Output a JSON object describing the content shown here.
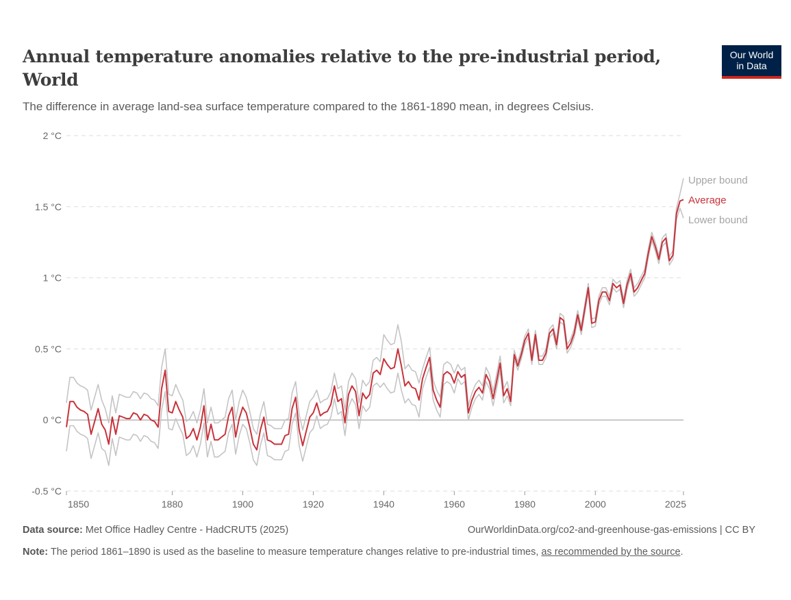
{
  "header": {
    "title": "Annual temperature anomalies relative to the pre-industrial period, World",
    "subtitle": "The difference in average land-sea surface temperature compared to the 1861-1890 mean, in degrees Celsius.",
    "logo_text": "Our World in Data"
  },
  "footer": {
    "source_label": "Data source:",
    "source_text": "Met Office Hadley Centre - HadCRUT5 (2025)",
    "url_license": "OurWorldinData.org/co2-and-greenhouse-gas-emissions | CC BY",
    "note_label": "Note:",
    "note_text": "The period 1861–1890 is used as the baseline to measure temperature changes relative to pre-industrial times, ",
    "note_link": "as recommended by the source",
    "note_end": "."
  },
  "colors": {
    "average": "#c8323a",
    "bounds": "#c4c4c4",
    "logo_bg": "#002147",
    "logo_accent": "#ce261e"
  },
  "chart_data": {
    "type": "line",
    "title": "Annual temperature anomalies relative to the pre-industrial period, World",
    "x_start": 1850,
    "x_end": 2025,
    "xlim": [
      1850,
      2025
    ],
    "ylim": [
      -0.5,
      2
    ],
    "x_ticks": [
      "1850",
      "1880",
      "1900",
      "1920",
      "1940",
      "1960",
      "1980",
      "2000",
      "2025"
    ],
    "x_tick_values": [
      1850,
      1880,
      1900,
      1920,
      1940,
      1960,
      1980,
      2000,
      2025
    ],
    "y_ticks": [
      "-0.5 °C",
      "0 °C",
      "0.5 °C",
      "1 °C",
      "1.5 °C",
      "2 °C"
    ],
    "y_tick_values": [
      -0.5,
      0,
      0.5,
      1,
      1.5,
      2
    ],
    "grid": "horizontal dashed",
    "legend": "right (line-end labels)",
    "series": [
      {
        "name": "Upper bound",
        "color": "#c4c4c4",
        "values": [
          0.12,
          0.3,
          0.3,
          0.26,
          0.24,
          0.23,
          0.21,
          0.07,
          0.16,
          0.25,
          0.14,
          0.08,
          -0.02,
          0.17,
          0.05,
          0.18,
          0.17,
          0.16,
          0.16,
          0.2,
          0.19,
          0.15,
          0.19,
          0.18,
          0.15,
          0.14,
          0.1,
          0.37,
          0.5,
          0.18,
          0.17,
          0.25,
          0.19,
          0.14,
          -0.01,
          0.01,
          0.06,
          -0.02,
          0.07,
          0.22,
          -0.02,
          0.09,
          -0.02,
          -0.02,
          0.0,
          0.02,
          0.15,
          0.21,
          0.0,
          0.13,
          0.21,
          0.16,
          0.06,
          -0.06,
          -0.1,
          0.04,
          0.13,
          -0.03,
          -0.04,
          -0.06,
          -0.06,
          -0.06,
          0.0,
          0.01,
          0.19,
          0.27,
          0.04,
          -0.07,
          0.03,
          0.13,
          0.16,
          0.21,
          0.12,
          0.14,
          0.15,
          0.2,
          0.33,
          0.22,
          0.24,
          0.07,
          0.27,
          0.33,
          0.29,
          0.12,
          0.28,
          0.24,
          0.27,
          0.42,
          0.44,
          0.41,
          0.6,
          0.56,
          0.53,
          0.54,
          0.67,
          0.55,
          0.36,
          0.39,
          0.35,
          0.34,
          0.26,
          0.36,
          0.44,
          0.51,
          0.28,
          0.21,
          0.16,
          0.39,
          0.41,
          0.39,
          0.33,
          0.39,
          0.35,
          0.37,
          0.1,
          0.19,
          0.25,
          0.28,
          0.24,
          0.37,
          0.32,
          0.2,
          0.32,
          0.45,
          0.22,
          0.27,
          0.16,
          0.49,
          0.41,
          0.49,
          0.59,
          0.64,
          0.45,
          0.63,
          0.45,
          0.45,
          0.5,
          0.64,
          0.67,
          0.56,
          0.75,
          0.73,
          0.53,
          0.57,
          0.64,
          0.77,
          0.66,
          0.81,
          0.96,
          0.71,
          0.72,
          0.87,
          0.93,
          0.93,
          0.87,
          0.99,
          0.96,
          0.98,
          0.85,
          0.98,
          1.06,
          0.93,
          0.96,
          1.01,
          1.06,
          1.2,
          1.32,
          1.25,
          1.16,
          1.28,
          1.31,
          1.15,
          1.19,
          1.49,
          1.59,
          1.7
        ]
      },
      {
        "name": "Average",
        "color": "#c8323a",
        "values": [
          -0.05,
          0.13,
          0.13,
          0.09,
          0.07,
          0.06,
          0.04,
          -0.1,
          -0.01,
          0.08,
          -0.03,
          -0.07,
          -0.17,
          0.02,
          -0.1,
          0.03,
          0.02,
          0.01,
          0.01,
          0.05,
          0.04,
          0.0,
          0.04,
          0.03,
          0.0,
          -0.01,
          -0.05,
          0.22,
          0.35,
          0.06,
          0.05,
          0.13,
          0.07,
          0.02,
          -0.13,
          -0.11,
          -0.06,
          -0.14,
          -0.05,
          0.1,
          -0.14,
          -0.03,
          -0.14,
          -0.14,
          -0.12,
          -0.1,
          0.03,
          0.09,
          -0.12,
          0.01,
          0.09,
          0.05,
          -0.05,
          -0.17,
          -0.21,
          -0.07,
          0.02,
          -0.14,
          -0.15,
          -0.17,
          -0.17,
          -0.17,
          -0.11,
          -0.1,
          0.08,
          0.16,
          -0.07,
          -0.18,
          -0.08,
          0.02,
          0.05,
          0.12,
          0.03,
          0.05,
          0.06,
          0.11,
          0.24,
          0.13,
          0.15,
          -0.02,
          0.18,
          0.24,
          0.2,
          0.03,
          0.19,
          0.15,
          0.18,
          0.33,
          0.35,
          0.32,
          0.43,
          0.39,
          0.36,
          0.37,
          0.5,
          0.38,
          0.24,
          0.27,
          0.23,
          0.22,
          0.14,
          0.29,
          0.37,
          0.44,
          0.21,
          0.14,
          0.09,
          0.32,
          0.34,
          0.32,
          0.26,
          0.34,
          0.3,
          0.32,
          0.05,
          0.14,
          0.2,
          0.23,
          0.19,
          0.32,
          0.27,
          0.15,
          0.27,
          0.4,
          0.17,
          0.22,
          0.13,
          0.46,
          0.38,
          0.46,
          0.56,
          0.61,
          0.42,
          0.6,
          0.42,
          0.42,
          0.47,
          0.61,
          0.64,
          0.53,
          0.72,
          0.7,
          0.5,
          0.54,
          0.61,
          0.74,
          0.63,
          0.78,
          0.93,
          0.68,
          0.69,
          0.84,
          0.9,
          0.9,
          0.84,
          0.96,
          0.93,
          0.95,
          0.82,
          0.95,
          1.03,
          0.9,
          0.93,
          0.98,
          1.03,
          1.17,
          1.29,
          1.22,
          1.13,
          1.25,
          1.28,
          1.12,
          1.16,
          1.45,
          1.54,
          1.55
        ]
      },
      {
        "name": "Lower bound",
        "color": "#c4c4c4",
        "values": [
          -0.22,
          -0.04,
          -0.04,
          -0.08,
          -0.1,
          -0.11,
          -0.13,
          -0.27,
          -0.18,
          -0.09,
          -0.2,
          -0.22,
          -0.32,
          -0.13,
          -0.25,
          -0.12,
          -0.13,
          -0.14,
          -0.14,
          -0.1,
          -0.11,
          -0.15,
          -0.11,
          -0.12,
          -0.15,
          -0.16,
          -0.2,
          0.07,
          0.2,
          -0.06,
          -0.07,
          0.01,
          -0.05,
          -0.1,
          -0.25,
          -0.23,
          -0.18,
          -0.26,
          -0.17,
          -0.02,
          -0.26,
          -0.15,
          -0.26,
          -0.26,
          -0.24,
          -0.22,
          -0.09,
          -0.03,
          -0.24,
          -0.11,
          -0.03,
          -0.06,
          -0.16,
          -0.28,
          -0.32,
          -0.18,
          -0.09,
          -0.25,
          -0.26,
          -0.28,
          -0.28,
          -0.28,
          -0.22,
          -0.21,
          -0.03,
          0.05,
          -0.18,
          -0.29,
          -0.19,
          -0.09,
          -0.06,
          0.03,
          -0.06,
          -0.04,
          -0.03,
          0.02,
          0.15,
          0.04,
          0.06,
          -0.11,
          0.09,
          0.15,
          0.11,
          -0.06,
          0.1,
          0.06,
          0.09,
          0.24,
          0.26,
          0.23,
          0.26,
          0.22,
          0.19,
          0.2,
          0.33,
          0.21,
          0.12,
          0.15,
          0.11,
          0.1,
          0.02,
          0.22,
          0.3,
          0.37,
          0.14,
          0.07,
          0.02,
          0.25,
          0.27,
          0.25,
          0.19,
          0.29,
          0.25,
          0.27,
          0.0,
          0.09,
          0.15,
          0.18,
          0.14,
          0.27,
          0.22,
          0.1,
          0.22,
          0.35,
          0.12,
          0.17,
          0.1,
          0.43,
          0.35,
          0.43,
          0.53,
          0.58,
          0.39,
          0.57,
          0.39,
          0.39,
          0.44,
          0.58,
          0.61,
          0.5,
          0.69,
          0.67,
          0.47,
          0.51,
          0.58,
          0.71,
          0.6,
          0.75,
          0.9,
          0.65,
          0.66,
          0.81,
          0.87,
          0.87,
          0.81,
          0.93,
          0.9,
          0.92,
          0.79,
          0.92,
          1.0,
          0.87,
          0.9,
          0.95,
          1.0,
          1.14,
          1.26,
          1.19,
          1.1,
          1.22,
          1.25,
          1.09,
          1.13,
          1.41,
          1.49,
          1.42
        ]
      }
    ]
  }
}
